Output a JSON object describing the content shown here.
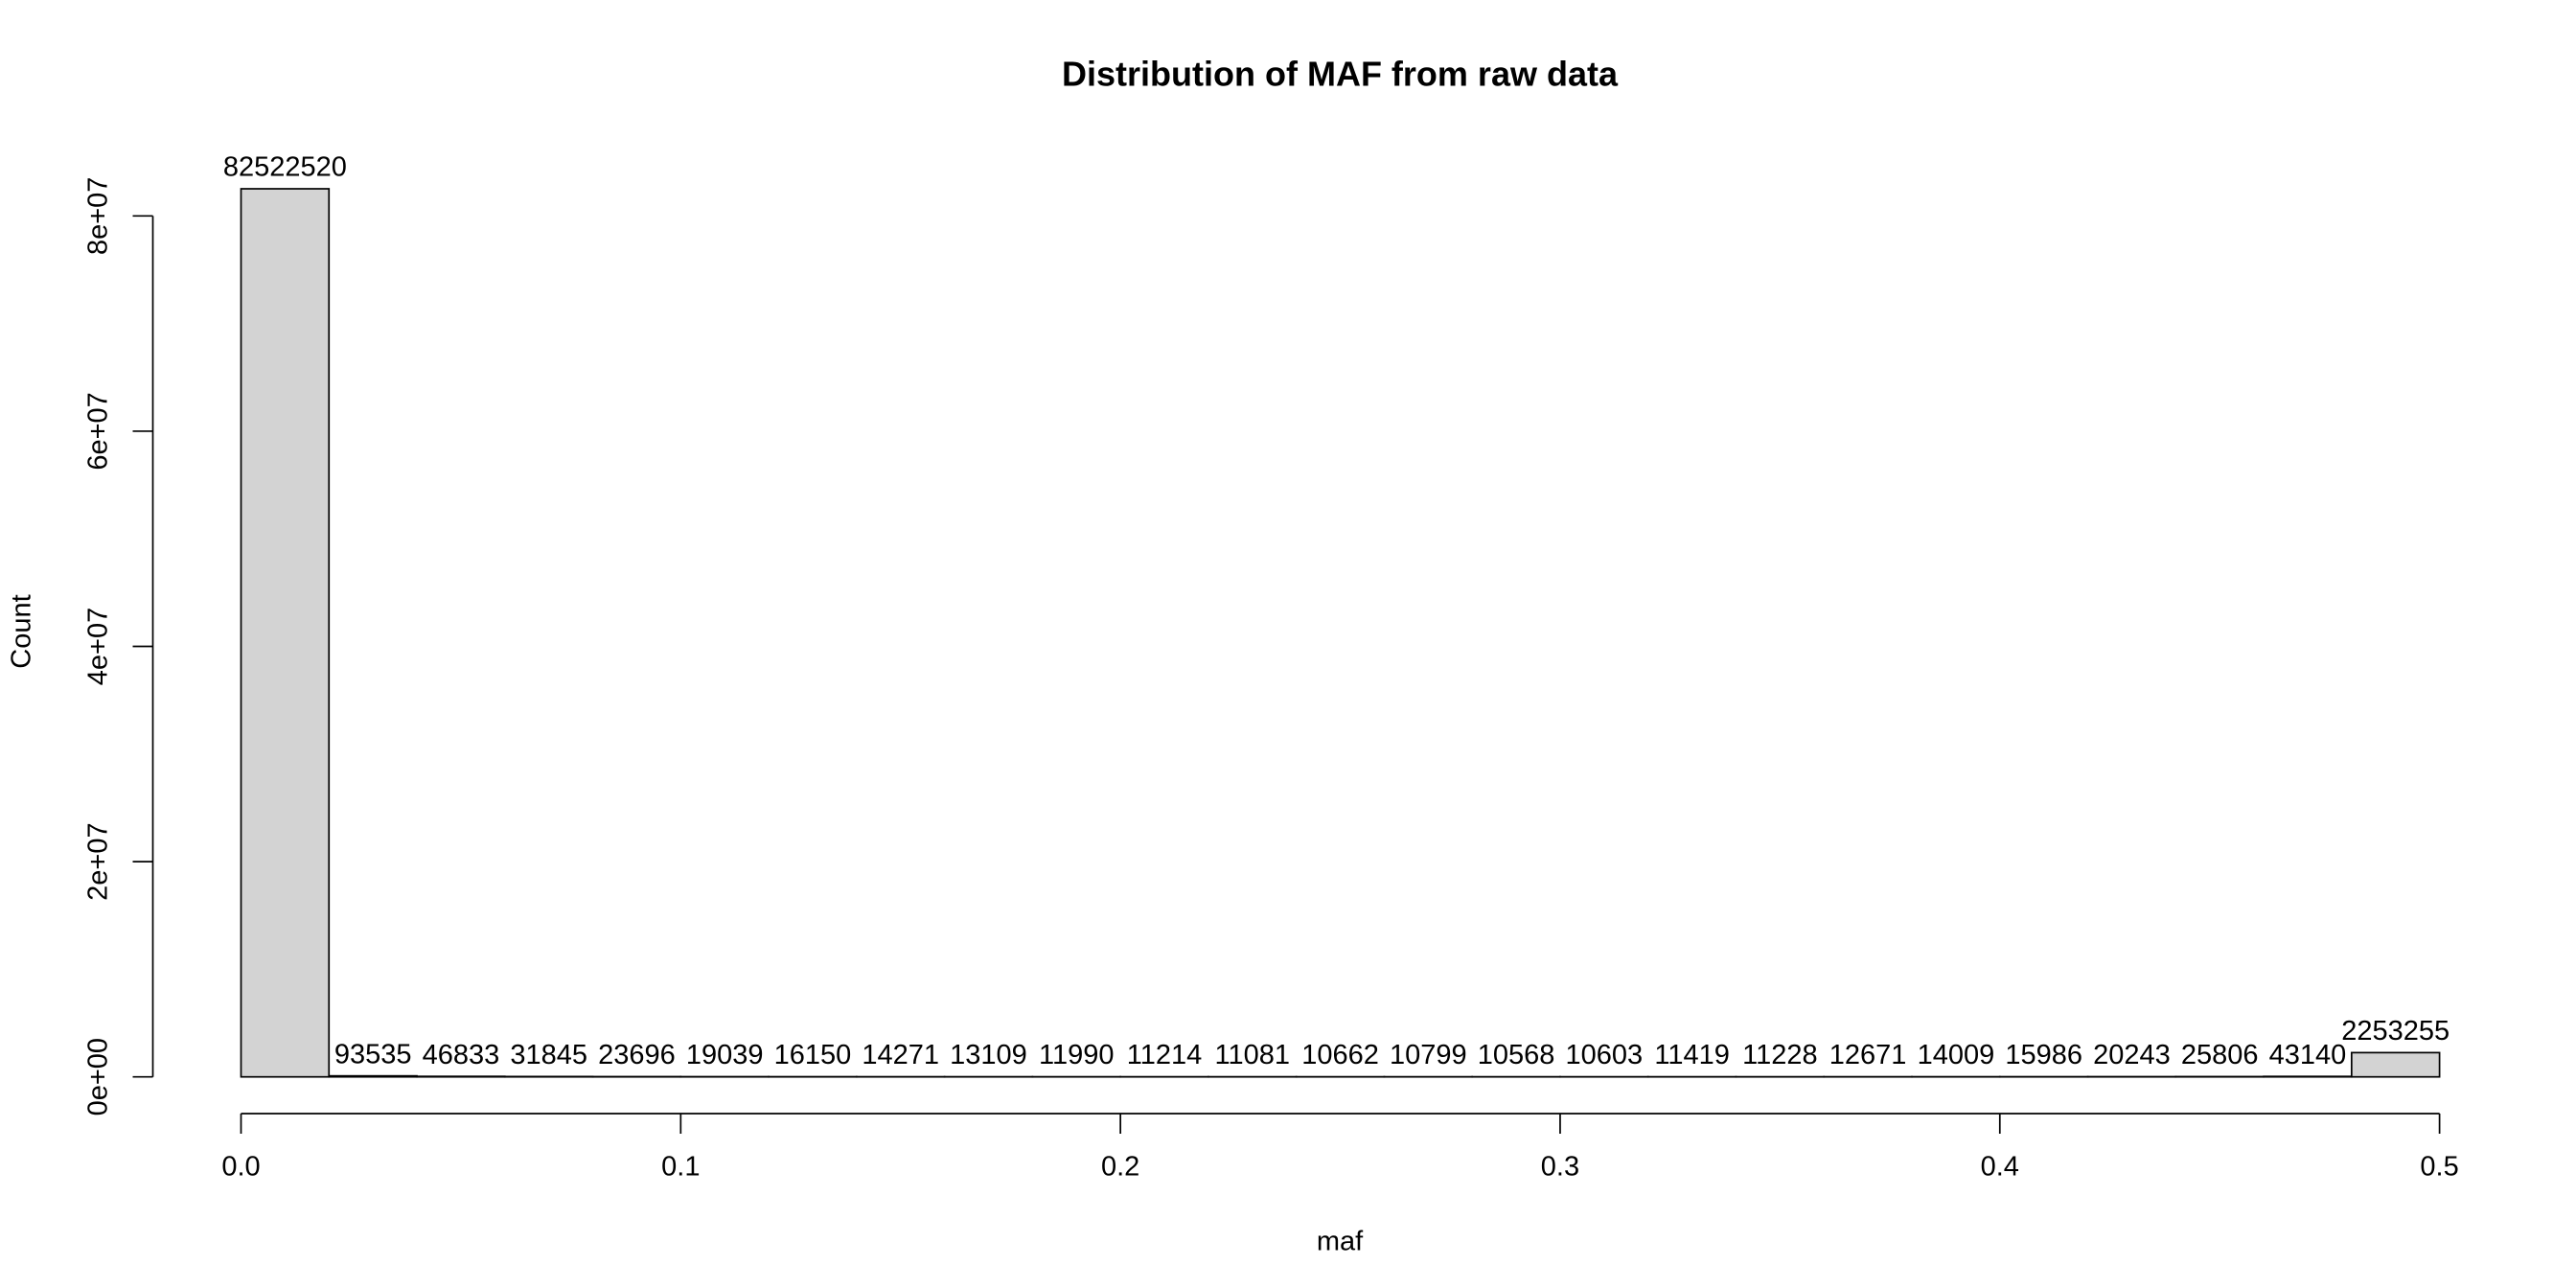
{
  "chart_data": {
    "type": "histogram",
    "title": "Distribution of MAF from raw data",
    "x_label": "maf",
    "y_label": "Count",
    "color": "#d3d3d3",
    "bins": [
      0,
      0.02,
      0.04,
      0.06,
      0.08,
      0.1,
      0.12,
      0.14,
      0.16,
      0.18,
      0.2,
      0.22,
      0.24,
      0.26,
      0.28,
      0.3,
      0.32,
      0.34,
      0.36,
      0.38,
      0.4,
      0.42,
      0.44,
      0.46,
      0.48,
      0.5
    ],
    "values": [
      82522520,
      93535,
      46833,
      31845,
      23696,
      19039,
      16150,
      14271,
      13109,
      11990,
      11214,
      11081,
      10662,
      10799,
      10568,
      10603,
      11419,
      11228,
      12671,
      14009,
      15986,
      20243,
      25806,
      43140,
      2253255
    ],
    "xlim": [
      0,
      0.5
    ],
    "xticks": [
      {
        "value": 0,
        "label": "0.0"
      },
      0.1,
      0.2,
      0.3,
      0.4,
      0.5
    ],
    "ylim": [
      0,
      82522520
    ],
    "yticks": [
      {
        "value": 0,
        "label": "0e+00"
      },
      {
        "value": 20000000,
        "label": "2e+07"
      },
      {
        "value": 40000000,
        "label": "4e+07"
      },
      {
        "value": 60000000,
        "label": "6e+07"
      },
      {
        "value": 80000000,
        "label": "8e+07"
      }
    ]
  }
}
